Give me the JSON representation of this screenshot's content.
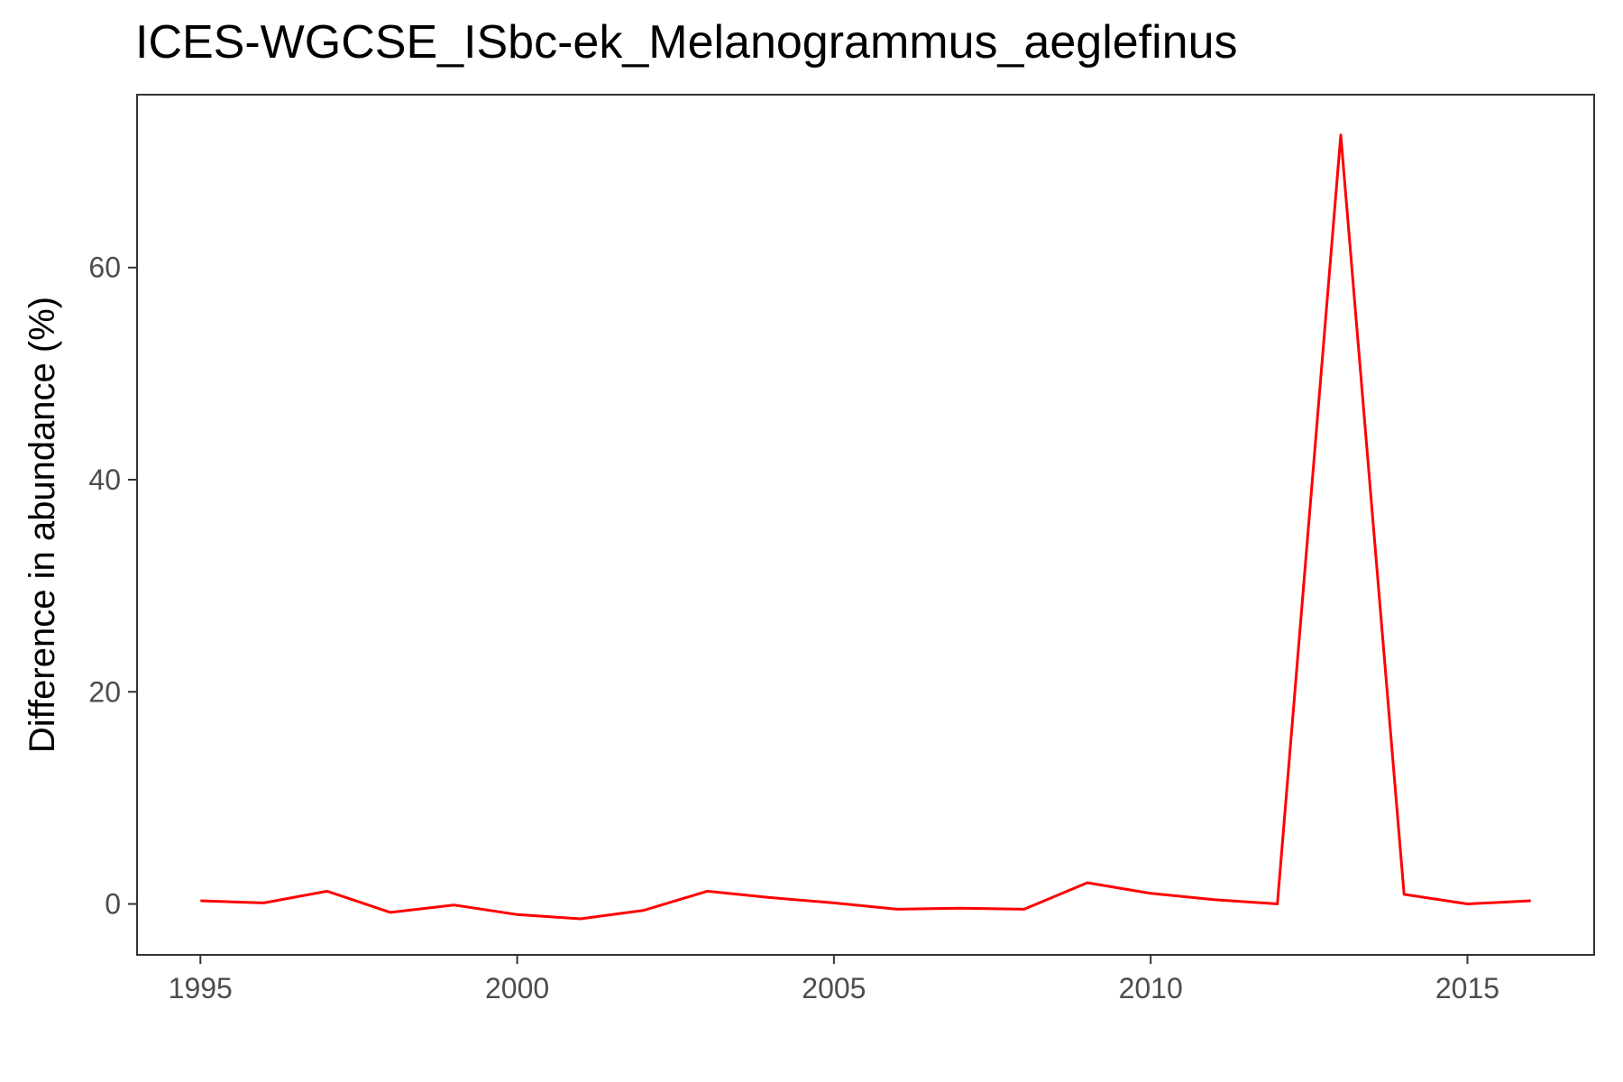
{
  "chart_data": {
    "type": "line",
    "title": "ICES-WGCSE_ISbc-ek_Melanogrammus_aeglefinus",
    "xlabel": "",
    "ylabel": "Difference in abundance (%)",
    "xlim": [
      1994,
      2017
    ],
    "ylim": [
      -4.8,
      76.3
    ],
    "x_ticks": [
      1995,
      2000,
      2005,
      2010,
      2015
    ],
    "y_ticks": [
      0,
      20,
      40,
      60
    ],
    "x_tick_labels": [
      "1995",
      "2000",
      "2005",
      "2010",
      "2015"
    ],
    "y_tick_labels": [
      "0",
      "20",
      "40",
      "60"
    ],
    "grid": false,
    "legend": "none",
    "series": [
      {
        "color": "#ff0000",
        "x": [
          1995,
          1996,
          1997,
          1998,
          1999,
          2000,
          2001,
          2002,
          2003,
          2004,
          2005,
          2006,
          2007,
          2008,
          2009,
          2010,
          2011,
          2012,
          2013,
          2014,
          2015,
          2016
        ],
        "y": [
          0.3,
          0.1,
          1.2,
          -0.8,
          -0.1,
          -1.0,
          -1.4,
          -0.6,
          1.2,
          0.6,
          0.1,
          -0.5,
          -0.4,
          -0.5,
          2.0,
          1.0,
          0.4,
          0.0,
          72.5,
          0.9,
          0.0,
          0.3
        ]
      }
    ]
  }
}
